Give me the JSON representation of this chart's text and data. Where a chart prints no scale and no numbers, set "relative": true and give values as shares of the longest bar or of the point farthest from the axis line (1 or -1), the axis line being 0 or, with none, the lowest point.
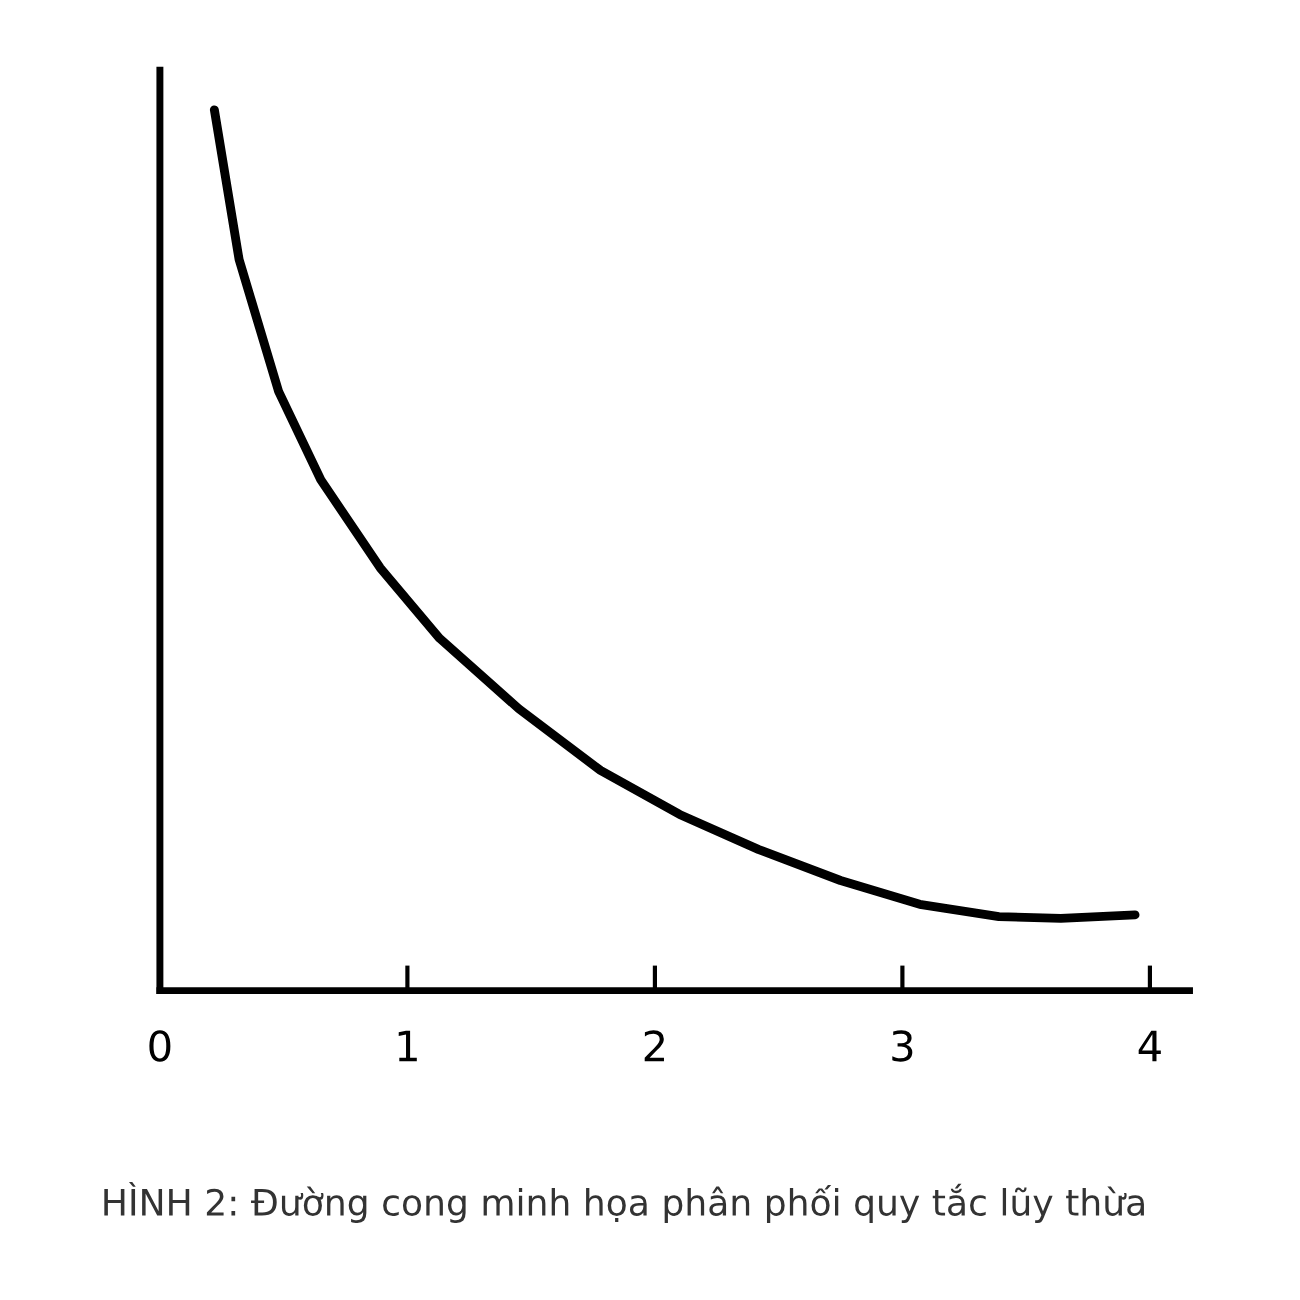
{
  "chart_data": {
    "type": "line",
    "relative": true,
    "x": [
      0.22,
      0.32,
      0.48,
      0.65,
      0.89,
      1.13,
      1.45,
      1.78,
      2.1,
      2.42,
      2.75,
      3.07,
      3.39,
      3.64,
      3.94
    ],
    "series": [
      {
        "color": "#000000",
        "values": [
          1.0,
          0.83,
          0.68,
          0.58,
          0.48,
          0.4,
          0.32,
          0.25,
          0.2,
          0.16,
          0.125,
          0.098,
          0.084,
          0.082,
          0.086
        ]
      }
    ],
    "xlim": [
      0,
      4.16
    ],
    "xticks": [
      0,
      1,
      2,
      3,
      4
    ],
    "grid": false,
    "legend": false,
    "marker": "none",
    "line_style": "solid",
    "annotations": [
      "HÌNH 2: Đường cong minh họa phân phối quy tắc lũy thừa"
    ]
  }
}
